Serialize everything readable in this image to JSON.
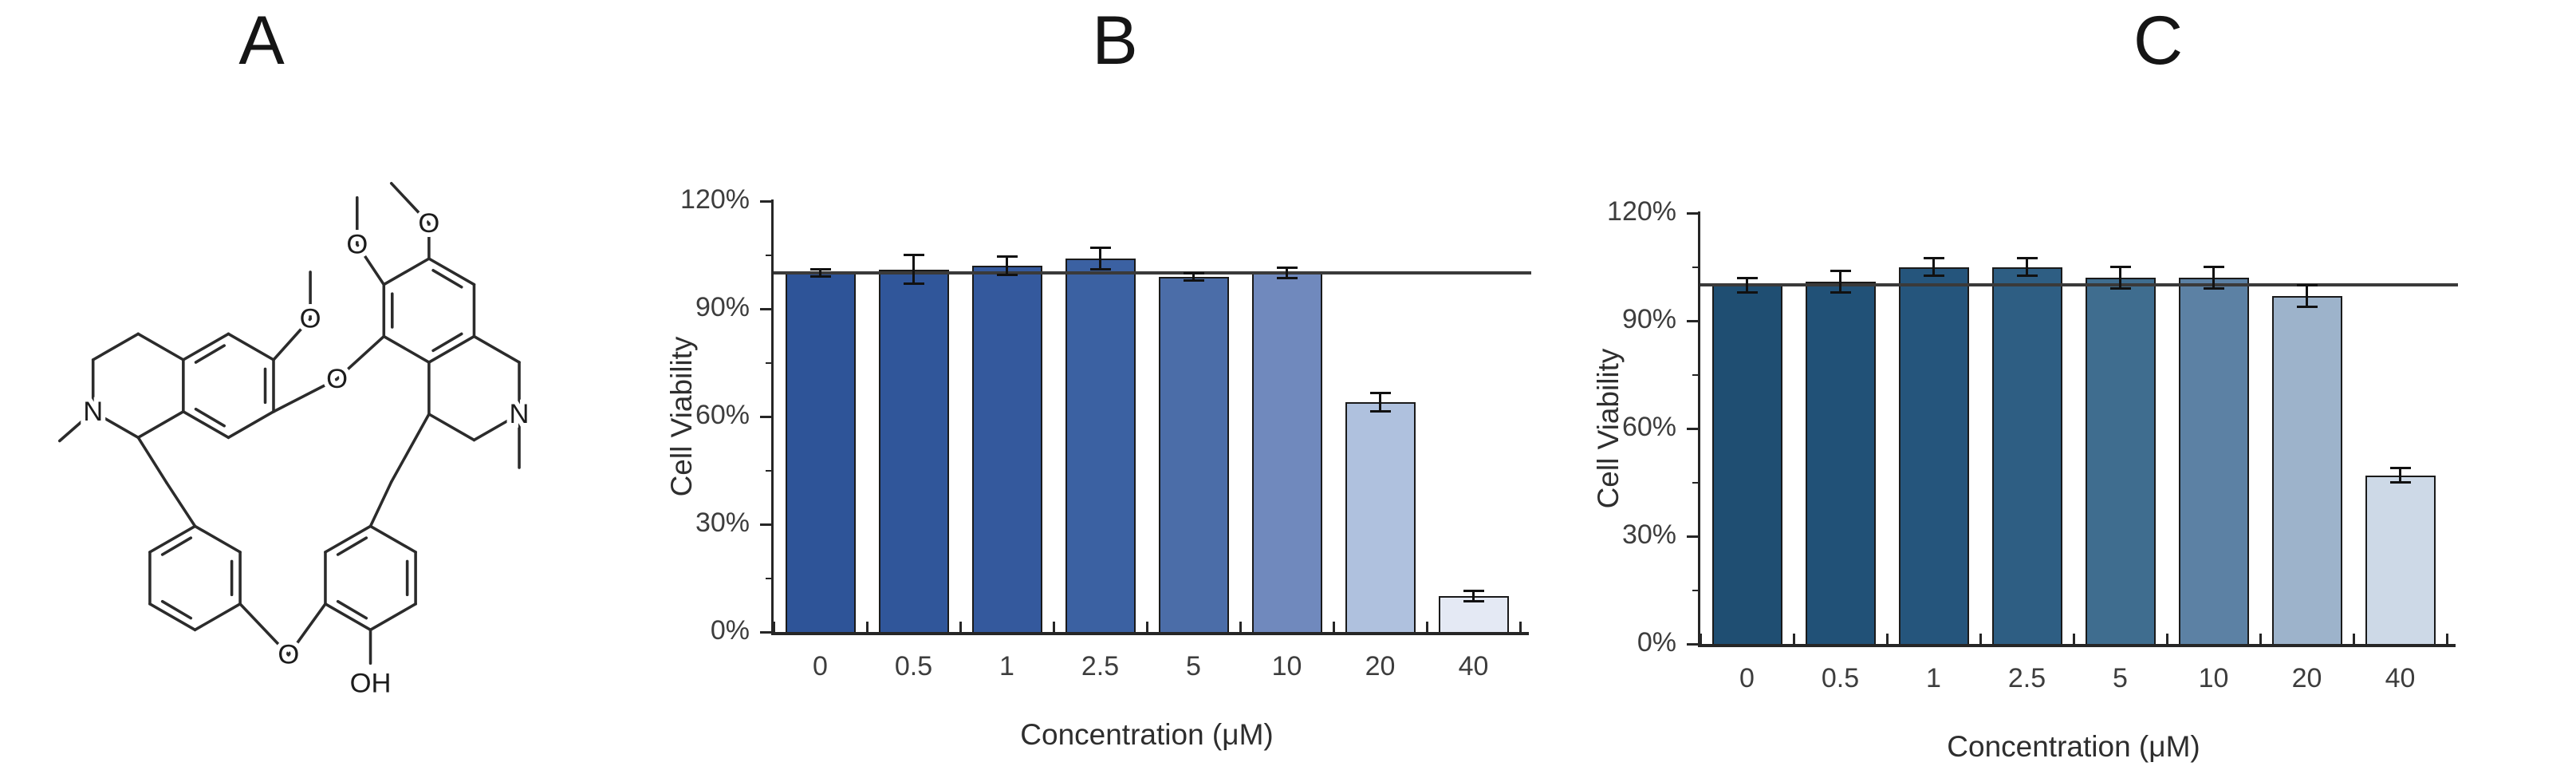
{
  "panels": {
    "a": {
      "label": "A"
    },
    "b": {
      "label": "B"
    },
    "c": {
      "label": "C"
    }
  },
  "structure": {
    "description": "bisbenzylisoquinoline alkaloid with two N-methyl tetrahydroisoquinoline units, three methoxy groups, two aryl ether bridges and one phenolic hydroxyl",
    "atoms": {
      "n_left": "N",
      "n_right": "N",
      "o_methoxy_top": "O",
      "o_methoxy_mid": "O",
      "o_methoxy_left": "O",
      "o_ether_top": "O",
      "o_ether_bottom": "O",
      "hydroxyl": "OH"
    }
  },
  "colors": {
    "bar_outline": "#1a1a1a",
    "error_bar": "#111111",
    "reference_line": "#3a3a3a",
    "axis": "#262626",
    "tick_text": "#3d3d3d",
    "axis_title_text": "#2e2e2e"
  },
  "chart_data": [
    {
      "id": "chartB",
      "type": "bar",
      "panel": "B",
      "title": "",
      "xlabel": "Concentration (μM)",
      "ylabel": "Cell Viability",
      "categories": [
        "0",
        "0.5",
        "1",
        "2.5",
        "5",
        "10",
        "20",
        "40"
      ],
      "values": [
        100,
        101,
        102,
        104,
        99,
        100,
        64,
        10
      ],
      "errors": [
        1,
        4,
        2.5,
        3,
        1,
        1.5,
        2.5,
        1.5
      ],
      "bar_colors": [
        "#2e5498",
        "#30569a",
        "#34599d",
        "#3b61a2",
        "#4b6da8",
        "#7089bd",
        "#afc1de",
        "#e4e9f4"
      ],
      "ylim": [
        0,
        120
      ],
      "yticks": [
        120,
        90,
        60,
        30,
        0
      ],
      "ytick_labels": [
        "120%",
        "90%",
        "60%",
        "30%",
        "0%"
      ],
      "yticks_minor": [
        105,
        75,
        45,
        15
      ],
      "reference_line": 100,
      "grid": false,
      "legend": false
    },
    {
      "id": "chartC",
      "type": "bar",
      "panel": "C",
      "title": "",
      "xlabel": "Concentration (μM)",
      "ylabel": "Cell Viability",
      "categories": [
        "0",
        "0.5",
        "1",
        "2.5",
        "5",
        "10",
        "20",
        "40"
      ],
      "values": [
        100,
        101,
        105,
        105,
        102,
        102,
        97,
        47
      ],
      "errors": [
        2,
        3,
        2.5,
        2.5,
        3,
        3,
        3,
        2
      ],
      "bar_colors": [
        "#1f4e72",
        "#215177",
        "#25557c",
        "#2e5e83",
        "#3f6d8f",
        "#5c81a4",
        "#9db3cb",
        "#cdd9e7"
      ],
      "ylim": [
        0,
        120
      ],
      "yticks": [
        120,
        90,
        60,
        30,
        0
      ],
      "ytick_labels": [
        "120%",
        "90%",
        "60%",
        "30%",
        "0%"
      ],
      "yticks_minor": [
        105,
        75,
        45,
        15
      ],
      "reference_line": 100,
      "grid": false,
      "legend": false
    }
  ]
}
